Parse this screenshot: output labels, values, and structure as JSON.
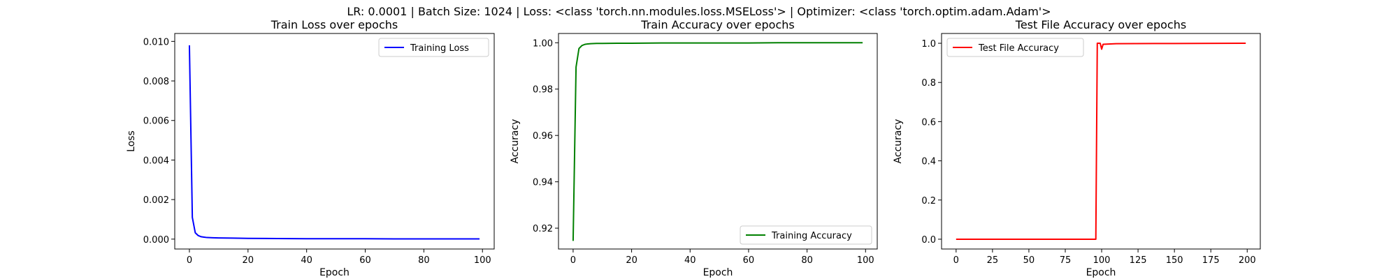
{
  "suptitle": "LR: 0.0001 | Batch Size: 1024 | Loss: <class 'torch.nn.modules.loss.MSELoss'> | Optimizer: <class 'torch.optim.adam.Adam'>",
  "colors": {
    "loss": "#0000ff",
    "accuracy": "#008000",
    "test": "#ff0000"
  },
  "chart_data": [
    {
      "type": "line",
      "title": "Train Loss over epochs",
      "xlabel": "Epoch",
      "ylabel": "Loss",
      "xlim": [
        -5,
        104
      ],
      "ylim": [
        -0.0005,
        0.0104
      ],
      "xticks": [
        0,
        20,
        40,
        60,
        80,
        100
      ],
      "yticks": [
        0.0,
        0.002,
        0.004,
        0.006,
        0.008,
        0.01
      ],
      "yticklabels": [
        "0.000",
        "0.002",
        "0.004",
        "0.006",
        "0.008",
        "0.010"
      ],
      "legend_position": "top-right",
      "grid": false,
      "series": [
        {
          "name": "Training Loss",
          "color": "#0000ff",
          "x": [
            0,
            1,
            2,
            3,
            4,
            5,
            6,
            8,
            10,
            15,
            20,
            30,
            40,
            50,
            60,
            70,
            80,
            90,
            99
          ],
          "y": [
            0.0098,
            0.0011,
            0.00032,
            0.00018,
            0.00012,
            0.0001,
            8e-05,
            7e-05,
            6e-05,
            5e-05,
            4e-05,
            3e-05,
            2e-05,
            2e-05,
            2e-05,
            1e-05,
            1e-05,
            1e-05,
            1e-05
          ]
        }
      ]
    },
    {
      "type": "line",
      "title": "Train Accuracy over epochs",
      "xlabel": "Epoch",
      "ylabel": "Accuracy",
      "xlim": [
        -5,
        104
      ],
      "ylim": [
        0.911,
        1.004
      ],
      "xticks": [
        0,
        20,
        40,
        60,
        80,
        100
      ],
      "yticks": [
        0.92,
        0.94,
        0.96,
        0.98,
        1.0
      ],
      "yticklabels": [
        "0.92",
        "0.94",
        "0.96",
        "0.98",
        "1.00"
      ],
      "legend_position": "bottom-right",
      "grid": false,
      "series": [
        {
          "name": "Training Accuracy",
          "color": "#008000",
          "x": [
            0,
            1,
            2,
            3,
            4,
            5,
            6,
            8,
            10,
            15,
            20,
            30,
            40,
            50,
            60,
            70,
            80,
            90,
            99
          ],
          "y": [
            0.9145,
            0.9895,
            0.9975,
            0.9988,
            0.9993,
            0.9995,
            0.9996,
            0.9997,
            0.9997,
            0.9998,
            0.9998,
            0.9999,
            0.9999,
            0.9999,
            0.9999,
            1.0,
            1.0,
            1.0,
            1.0
          ]
        }
      ]
    },
    {
      "type": "line",
      "title": "Test File Accuracy over epochs",
      "xlabel": "Epoch",
      "ylabel": "Accuracy",
      "xlim": [
        -10,
        209
      ],
      "ylim": [
        -0.05,
        1.05
      ],
      "xticks": [
        0,
        25,
        50,
        75,
        100,
        125,
        150,
        175,
        200
      ],
      "yticks": [
        0.0,
        0.2,
        0.4,
        0.6,
        0.8,
        1.0
      ],
      "yticklabels": [
        "0.0",
        "0.2",
        "0.4",
        "0.6",
        "0.8",
        "1.0"
      ],
      "legend_position": "top-left",
      "grid": false,
      "series": [
        {
          "name": "Test File Accuracy",
          "color": "#ff0000",
          "x": [
            0,
            96,
            97,
            99,
            100,
            101,
            110,
            150,
            199
          ],
          "y": [
            0.0,
            0.0,
            1.0,
            1.0,
            0.97,
            0.995,
            0.998,
            0.999,
            1.0
          ]
        }
      ]
    }
  ]
}
